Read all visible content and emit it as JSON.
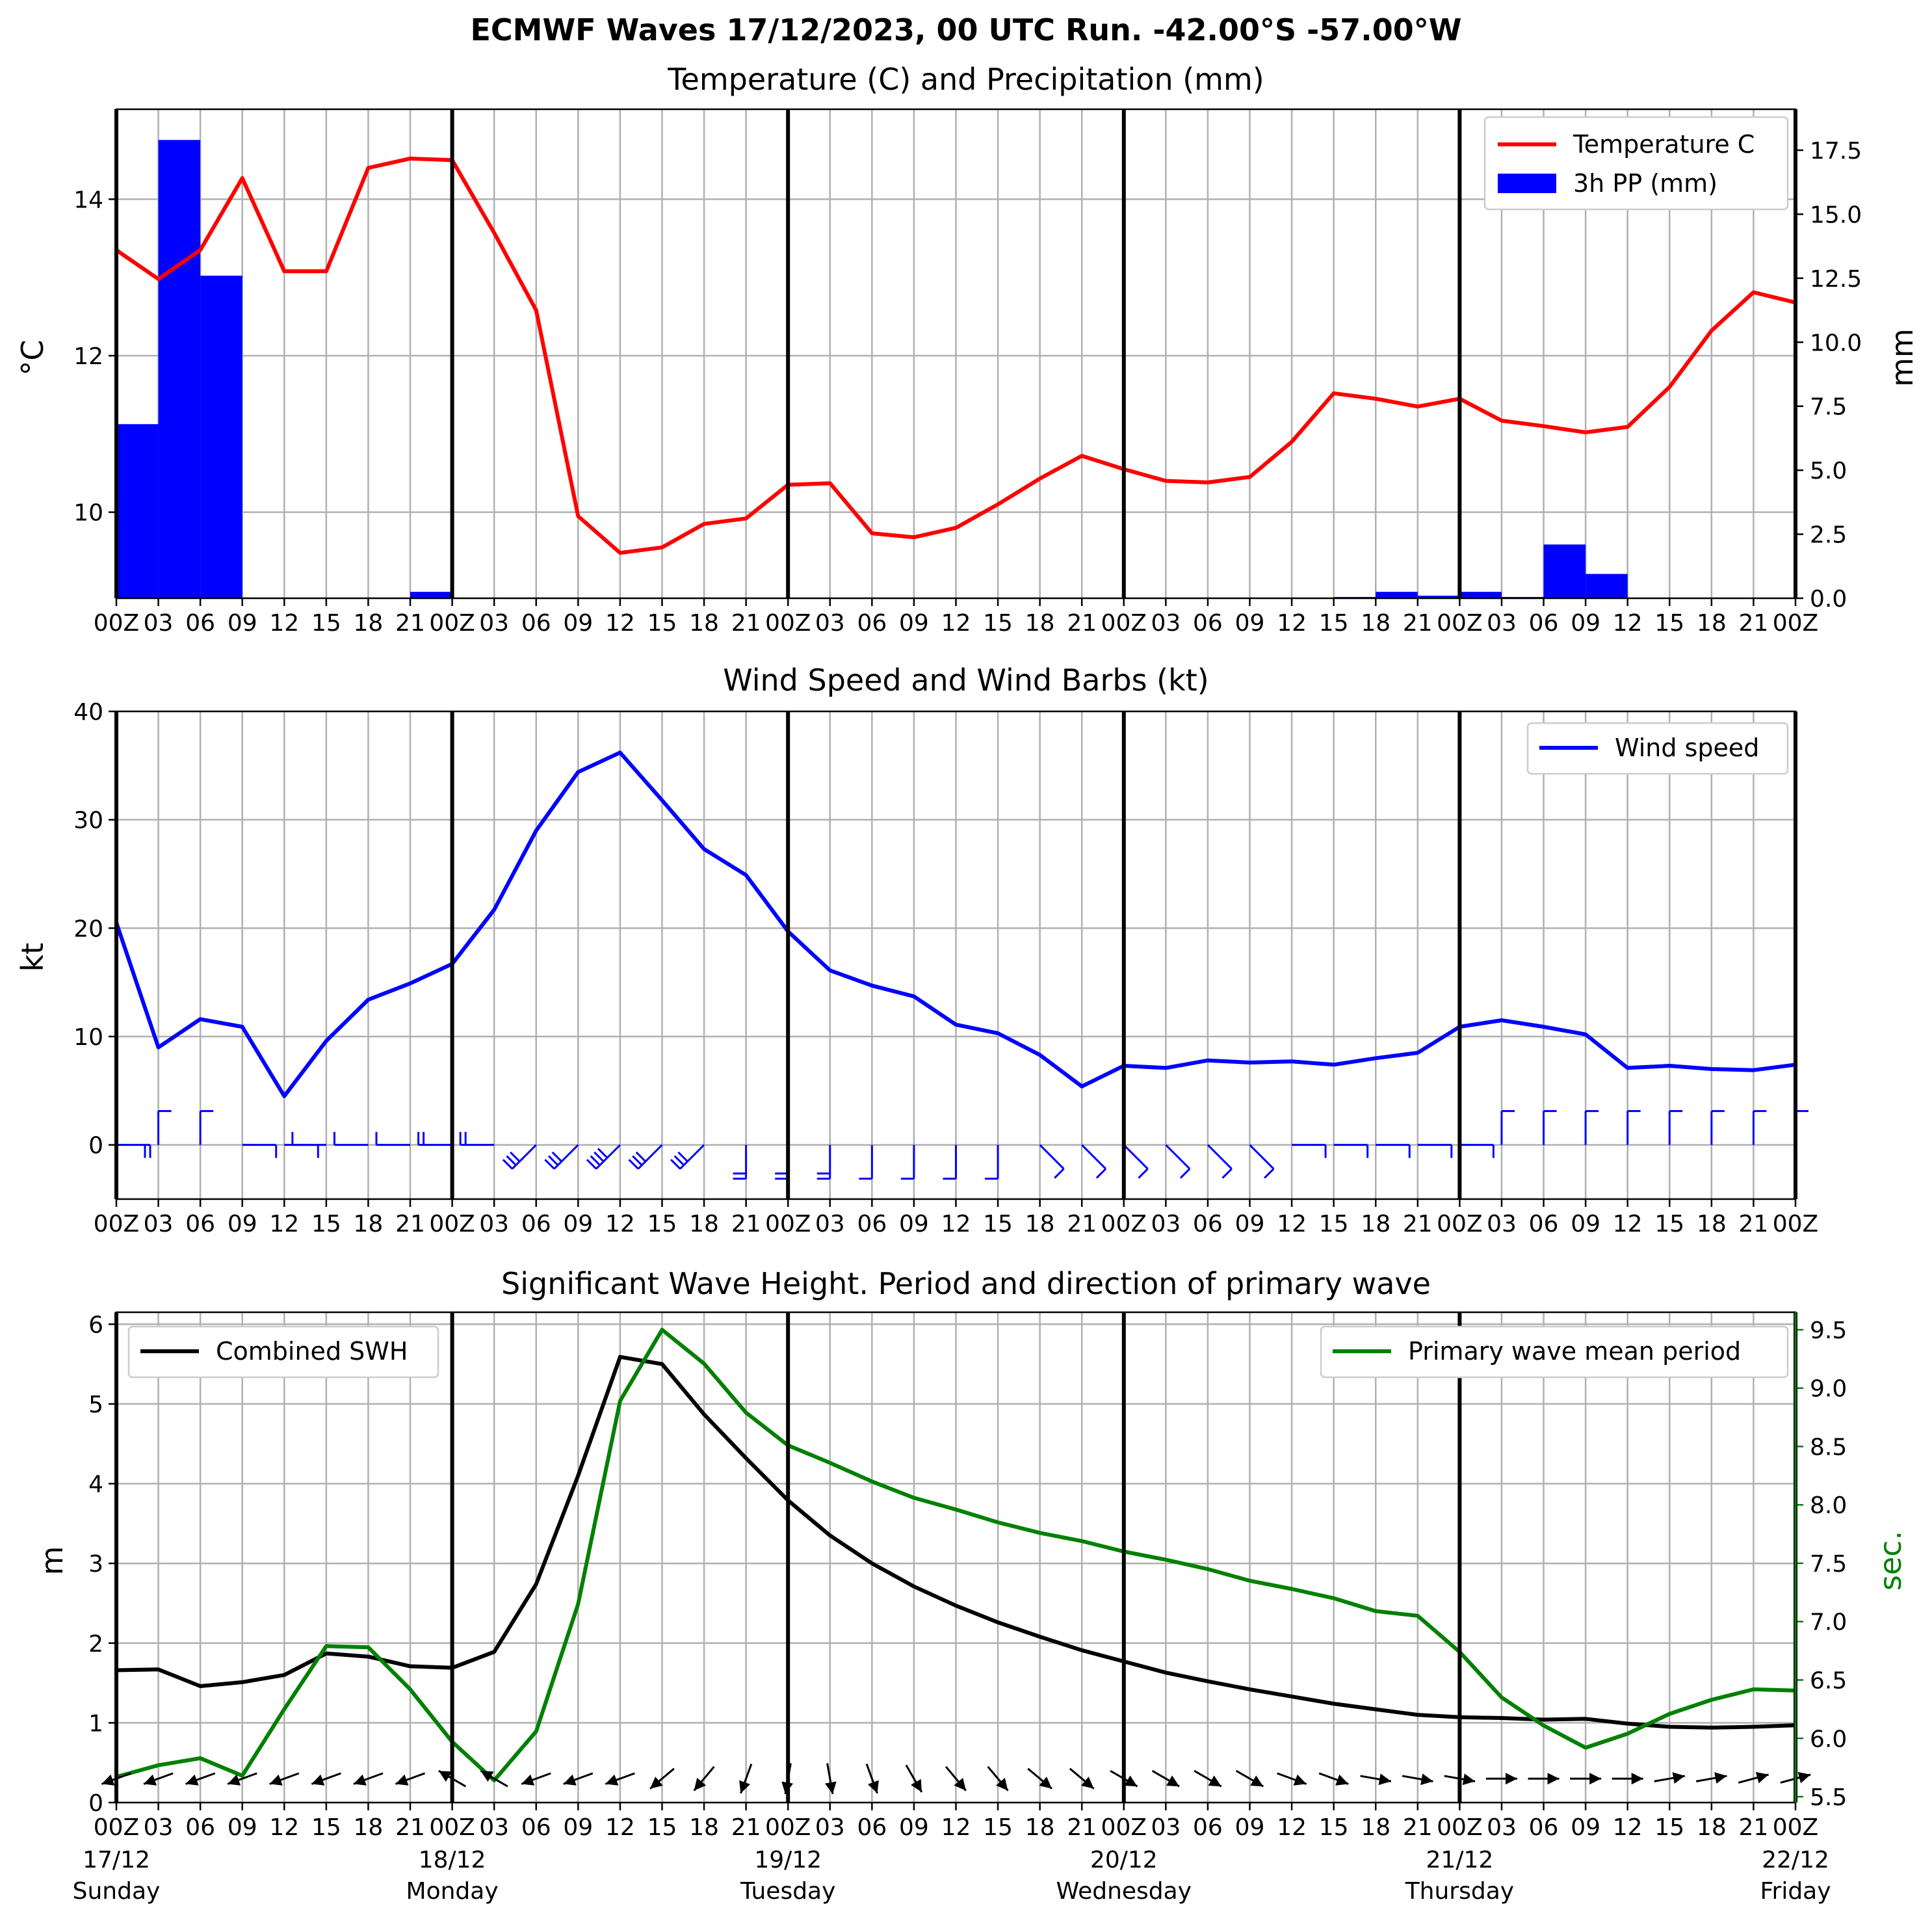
{
  "title": "ECMWF Waves 17/12/2023, 00 UTC Run. -42.00°S -57.00°W",
  "x_tick_labels": [
    "00Z",
    "03",
    "06",
    "09",
    "12",
    "15",
    "18",
    "21",
    "00Z",
    "03",
    "06",
    "09",
    "12",
    "15",
    "18",
    "21",
    "00Z",
    "03",
    "06",
    "09",
    "12",
    "15",
    "18",
    "21",
    "00Z",
    "03",
    "06",
    "09",
    "12",
    "15",
    "18",
    "21",
    "00Z",
    "03",
    "06",
    "09",
    "12",
    "15",
    "18",
    "21",
    "00Z"
  ],
  "date_labels": [
    {
      "date": "17/12",
      "day": "Sunday"
    },
    {
      "date": "18/12",
      "day": "Monday"
    },
    {
      "date": "19/12",
      "day": "Tuesday"
    },
    {
      "date": "20/12",
      "day": "Wednesday"
    },
    {
      "date": "21/12",
      "day": "Thursday"
    },
    {
      "date": "22/12",
      "day": "Friday"
    }
  ],
  "colors": {
    "temperature": "#ff0000",
    "precip": "#0000ff",
    "wind": "#0000ff",
    "swh": "#000000",
    "period": "#008000",
    "grid": "#b0b0b0"
  },
  "chart_data": [
    {
      "type": "line",
      "title": "Temperature (C) and Precipitation (mm)",
      "x_hours_from": "17/12/2023 00 UTC",
      "ylabel": "°C",
      "ylabel_right": "mm",
      "ylim": [
        8.9,
        15.15
      ],
      "ylim_right": [
        0,
        19.1
      ],
      "yticks": [
        "10",
        "12",
        "14"
      ],
      "yticks_right": [
        "0.0",
        "2.5",
        "5.0",
        "7.5",
        "10.0",
        "12.5",
        "15.0",
        "17.5"
      ],
      "legend_position": "top-right",
      "series": [
        {
          "name": "Temperature C",
          "x": [
            0,
            3,
            6,
            9,
            12,
            15,
            18,
            21,
            24,
            27,
            30,
            33,
            36,
            39,
            42,
            45,
            48,
            51,
            54,
            57,
            60,
            63,
            66,
            69,
            72,
            75,
            78,
            81,
            84,
            87,
            90,
            93,
            96,
            99,
            102,
            105,
            108,
            111,
            114,
            117,
            120
          ],
          "values": [
            13.35,
            12.98,
            13.35,
            14.27,
            13.08,
            13.08,
            14.4,
            14.52,
            14.5,
            13.57,
            12.58,
            9.95,
            9.48,
            9.55,
            9.85,
            9.92,
            10.35,
            10.37,
            9.73,
            9.68,
            9.8,
            10.1,
            10.43,
            10.72,
            10.55,
            10.4,
            10.38,
            10.45,
            10.9,
            11.52,
            11.45,
            11.35,
            11.45,
            11.17,
            11.1,
            11.02,
            11.09,
            11.6,
            12.32,
            12.81,
            12.68
          ]
        },
        {
          "name": "3h PP (mm)",
          "type": "bar",
          "axis": "right",
          "x_start": [
            0,
            3,
            6,
            9,
            12,
            15,
            18,
            21,
            24,
            27,
            30,
            33,
            36,
            39,
            42,
            45,
            48,
            51,
            54,
            57,
            60,
            63,
            66,
            69,
            72,
            75,
            78,
            81,
            84,
            87,
            90,
            93,
            96,
            99,
            102,
            105,
            108,
            111,
            114,
            117
          ],
          "values": [
            6.8,
            17.9,
            12.6,
            0,
            0,
            0,
            0,
            0.25,
            0,
            0,
            0,
            0,
            0,
            0,
            0,
            0,
            0,
            0,
            0,
            0,
            0,
            0,
            0,
            0,
            0,
            0,
            0,
            0,
            0,
            0.05,
            0.25,
            0.1,
            0.25,
            0.05,
            2.1,
            0.95,
            0,
            0,
            0,
            0
          ]
        }
      ]
    },
    {
      "type": "line",
      "title": "Wind Speed and Wind Barbs (kt)",
      "ylabel": "kt",
      "ylim": [
        -5,
        40
      ],
      "yticks": [
        "0",
        "10",
        "20",
        "30",
        "40"
      ],
      "legend_position": "top-right",
      "series": [
        {
          "name": "Wind speed",
          "x": [
            0,
            3,
            6,
            9,
            12,
            15,
            18,
            21,
            24,
            27,
            30,
            33,
            36,
            39,
            42,
            45,
            48,
            51,
            54,
            57,
            60,
            63,
            66,
            69,
            72,
            75,
            78,
            81,
            84,
            87,
            90,
            93,
            96,
            99,
            102,
            105,
            108,
            111,
            114,
            117,
            120
          ],
          "values": [
            20.5,
            9.0,
            11.6,
            10.9,
            4.5,
            9.6,
            13.4,
            14.9,
            16.7,
            21.7,
            29.0,
            34.4,
            36.2,
            31.8,
            27.3,
            24.9,
            19.7,
            16.1,
            14.7,
            13.7,
            11.1,
            10.3,
            8.3,
            5.4,
            7.3,
            7.1,
            7.8,
            7.6,
            7.7,
            7.4,
            8.0,
            8.5,
            10.9,
            11.5,
            10.9,
            10.2,
            7.1,
            7.3,
            7.0,
            6.9,
            7.4
          ]
        }
      ],
      "barbs": [
        {
          "dir": 90
        },
        {
          "dir": 0
        },
        {
          "dir": 0
        },
        {
          "dir": 90
        },
        {
          "dir": 90
        },
        {
          "dir": 270
        },
        {
          "dir": 270
        },
        {
          "dir": 270
        },
        {
          "dir": 270
        },
        {
          "dir": 270
        },
        {
          "dir": 225
        },
        {
          "dir": 225
        },
        {
          "dir": 225
        },
        {
          "dir": 225
        },
        {
          "dir": 225
        },
        {
          "dir": 180
        },
        {
          "dir": 180
        },
        {
          "dir": 180
        },
        {
          "dir": 180
        },
        {
          "dir": 180
        },
        {
          "dir": 180
        },
        {
          "dir": 180
        },
        {
          "dir": 135
        },
        {
          "dir": 135
        },
        {
          "dir": 135
        },
        {
          "dir": 135
        },
        {
          "dir": 135
        },
        {
          "dir": 135
        },
        {
          "dir": 90
        },
        {
          "dir": 90
        },
        {
          "dir": 90
        },
        {
          "dir": 90
        },
        {
          "dir": 90
        },
        {
          "dir": 0
        },
        {
          "dir": 0
        },
        {
          "dir": 0
        },
        {
          "dir": 0
        },
        {
          "dir": 0
        },
        {
          "dir": 0
        },
        {
          "dir": 0
        },
        {
          "dir": 0
        }
      ]
    },
    {
      "type": "line",
      "title": "Significant Wave Height. Period and direction of primary wave",
      "ylabel": "m",
      "ylabel_right": "sec.",
      "ylim": [
        0,
        6.15
      ],
      "ylim_right": [
        5.45,
        9.65
      ],
      "yticks": [
        "0",
        "1",
        "2",
        "3",
        "4",
        "5",
        "6"
      ],
      "yticks_right": [
        "5.5",
        "6.0",
        "6.5",
        "7.0",
        "7.5",
        "8.0",
        "8.5",
        "9.0",
        "9.5"
      ],
      "series": [
        {
          "name": "Combined SWH",
          "legend_position": "top-left",
          "x": [
            0,
            3,
            6,
            9,
            12,
            15,
            18,
            21,
            24,
            27,
            30,
            33,
            36,
            39,
            42,
            45,
            48,
            51,
            54,
            57,
            60,
            63,
            66,
            69,
            72,
            75,
            78,
            81,
            84,
            87,
            90,
            93,
            96,
            99,
            102,
            105,
            108,
            111,
            114,
            117,
            120
          ],
          "values": [
            1.66,
            1.67,
            1.46,
            1.51,
            1.6,
            1.87,
            1.83,
            1.71,
            1.69,
            1.89,
            2.74,
            4.1,
            5.59,
            5.5,
            4.87,
            4.32,
            3.79,
            3.35,
            3.0,
            2.71,
            2.47,
            2.26,
            2.08,
            1.91,
            1.77,
            1.63,
            1.52,
            1.42,
            1.33,
            1.24,
            1.17,
            1.1,
            1.07,
            1.06,
            1.04,
            1.05,
            0.99,
            0.95,
            0.94,
            0.95,
            0.97
          ]
        },
        {
          "name": "Primary wave mean period",
          "axis": "right",
          "legend_position": "top-right",
          "x": [
            0,
            3,
            6,
            9,
            12,
            15,
            18,
            21,
            24,
            27,
            30,
            33,
            36,
            39,
            42,
            45,
            48,
            51,
            54,
            57,
            60,
            63,
            66,
            69,
            72,
            75,
            78,
            81,
            84,
            87,
            90,
            93,
            96,
            99,
            102,
            105,
            108,
            111,
            114,
            117,
            120
          ],
          "values": [
            5.67,
            5.77,
            5.83,
            5.68,
            6.25,
            6.79,
            6.78,
            6.42,
            5.97,
            5.64,
            6.06,
            7.15,
            8.89,
            9.5,
            9.21,
            8.79,
            8.51,
            8.36,
            8.2,
            8.06,
            7.96,
            7.85,
            7.76,
            7.69,
            7.6,
            7.53,
            7.45,
            7.35,
            7.28,
            7.2,
            7.09,
            7.05,
            6.74,
            6.35,
            6.11,
            5.92,
            6.04,
            6.21,
            6.33,
            6.42,
            6.41
          ]
        }
      ],
      "direction_arrows": [
        {
          "dir": 250
        },
        {
          "dir": 250
        },
        {
          "dir": 250
        },
        {
          "dir": 250
        },
        {
          "dir": 250
        },
        {
          "dir": 250
        },
        {
          "dir": 250
        },
        {
          "dir": 250
        },
        {
          "dir": 300
        },
        {
          "dir": 300
        },
        {
          "dir": 250
        },
        {
          "dir": 250
        },
        {
          "dir": 250
        },
        {
          "dir": 230
        },
        {
          "dir": 220
        },
        {
          "dir": 200
        },
        {
          "dir": 190
        },
        {
          "dir": 170
        },
        {
          "dir": 160
        },
        {
          "dir": 150
        },
        {
          "dir": 140
        },
        {
          "dir": 140
        },
        {
          "dir": 130
        },
        {
          "dir": 130
        },
        {
          "dir": 120
        },
        {
          "dir": 120
        },
        {
          "dir": 120
        },
        {
          "dir": 120
        },
        {
          "dir": 110
        },
        {
          "dir": 110
        },
        {
          "dir": 100
        },
        {
          "dir": 100
        },
        {
          "dir": 100
        },
        {
          "dir": 90
        },
        {
          "dir": 90
        },
        {
          "dir": 90
        },
        {
          "dir": 90
        },
        {
          "dir": 80
        },
        {
          "dir": 80
        },
        {
          "dir": 75
        },
        {
          "dir": 75
        }
      ]
    }
  ]
}
